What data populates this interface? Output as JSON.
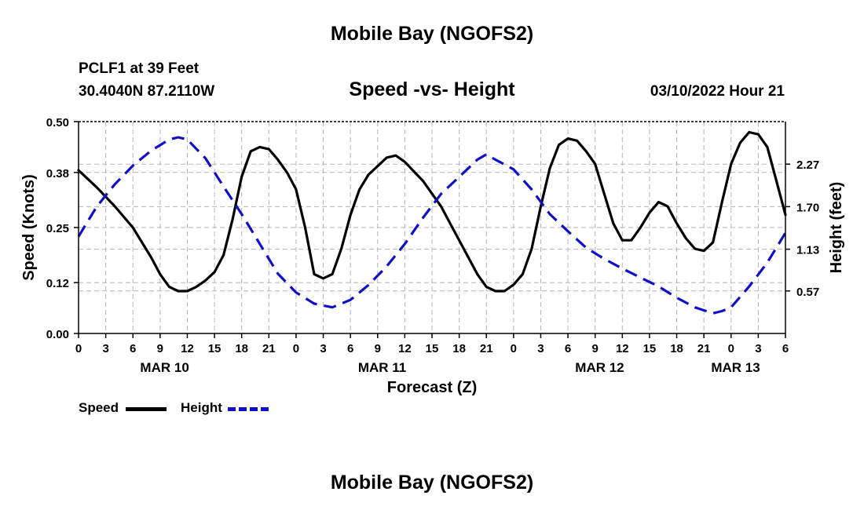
{
  "header": {
    "title": "Mobile Bay (NGOFS2)",
    "station": "PCLF1 at 39 Feet",
    "coords": "30.4040N  87.2110W",
    "subtitle": "Speed -vs- Height",
    "datetime": "03/10/2022 Hour 21"
  },
  "footer": {
    "title": "Mobile Bay (NGOFS2)"
  },
  "legend": {
    "items": [
      {
        "label": "Speed",
        "color": "#000000",
        "style": "solid"
      },
      {
        "label": "Height",
        "color": "#1010c8",
        "style": "dashed"
      }
    ]
  },
  "chart_data": {
    "type": "line",
    "title": "Speed -vs- Height",
    "xlabel": "Forecast (Z)",
    "ylabel": "Speed (Knots)",
    "y2label": "Height (feet)",
    "x_unit": "hours since MAR 10 00Z",
    "xlim": [
      0,
      78
    ],
    "ylim": [
      0,
      0.5
    ],
    "y2lim": [
      0,
      2.84
    ],
    "yticks": [
      "0.00",
      "0.12",
      "0.25",
      "0.38",
      "0.50"
    ],
    "y2ticks": [
      "0.57",
      "1.13",
      "1.70",
      "2.27"
    ],
    "xtick_labels": [
      "0",
      "3",
      "6",
      "9",
      "12",
      "15",
      "18",
      "21",
      "0",
      "3",
      "6",
      "9",
      "12",
      "15",
      "18",
      "21",
      "0",
      "3",
      "6",
      "9",
      "12",
      "15",
      "18",
      "21",
      "0",
      "3",
      "6"
    ],
    "day_labels": [
      {
        "label": "MAR 10",
        "x": 9.5
      },
      {
        "label": "MAR 11",
        "x": 33.5
      },
      {
        "label": "MAR 12",
        "x": 57.5
      },
      {
        "label": "MAR 13",
        "x": 72.5
      }
    ],
    "grid": true,
    "series": [
      {
        "name": "Speed",
        "axis": "left",
        "color": "#000000",
        "x": [
          0,
          2,
          4,
          6,
          8,
          9,
          10,
          11,
          12,
          13,
          14,
          15,
          16,
          17,
          18,
          19,
          20,
          21,
          22,
          23,
          24,
          25,
          26,
          27,
          28,
          29,
          30,
          31,
          32,
          33,
          34,
          35,
          36,
          38,
          40,
          42,
          44,
          45,
          46,
          47,
          48,
          49,
          50,
          51,
          52,
          53,
          54,
          55,
          56,
          57,
          58,
          59,
          60,
          61,
          62,
          63,
          64,
          65,
          66,
          67,
          68,
          69,
          70,
          71,
          72,
          73,
          74,
          75,
          76,
          77,
          78
        ],
        "values": [
          0.385,
          0.345,
          0.3,
          0.25,
          0.18,
          0.14,
          0.11,
          0.1,
          0.1,
          0.11,
          0.125,
          0.145,
          0.185,
          0.27,
          0.37,
          0.43,
          0.44,
          0.435,
          0.41,
          0.38,
          0.34,
          0.25,
          0.14,
          0.13,
          0.14,
          0.2,
          0.28,
          0.34,
          0.375,
          0.395,
          0.415,
          0.42,
          0.405,
          0.36,
          0.3,
          0.22,
          0.14,
          0.11,
          0.1,
          0.1,
          0.115,
          0.14,
          0.2,
          0.3,
          0.39,
          0.445,
          0.46,
          0.455,
          0.43,
          0.4,
          0.33,
          0.26,
          0.22,
          0.22,
          0.25,
          0.285,
          0.31,
          0.3,
          0.26,
          0.225,
          0.2,
          0.195,
          0.215,
          0.31,
          0.4,
          0.45,
          0.475,
          0.47,
          0.44,
          0.36,
          0.28
        ]
      },
      {
        "name": "Height",
        "axis": "right",
        "color": "#1010c8",
        "x": [
          0,
          2,
          4,
          6,
          8,
          10,
          11,
          12,
          14,
          16,
          18,
          20,
          22,
          24,
          26,
          28,
          30,
          32,
          34,
          36,
          38,
          40,
          42,
          44,
          45,
          46,
          48,
          50,
          52,
          54,
          56,
          58,
          60,
          62,
          64,
          66,
          68,
          70,
          71,
          72,
          74,
          76,
          78
        ],
        "values": [
          1.3,
          1.7,
          2.0,
          2.25,
          2.45,
          2.6,
          2.63,
          2.6,
          2.35,
          1.97,
          1.6,
          1.2,
          0.8,
          0.55,
          0.4,
          0.35,
          0.45,
          0.65,
          0.9,
          1.2,
          1.55,
          1.87,
          2.1,
          2.33,
          2.4,
          2.33,
          2.2,
          1.93,
          1.6,
          1.37,
          1.15,
          1.0,
          0.87,
          0.75,
          0.63,
          0.48,
          0.35,
          0.27,
          0.3,
          0.35,
          0.63,
          0.95,
          1.35
        ]
      }
    ]
  }
}
